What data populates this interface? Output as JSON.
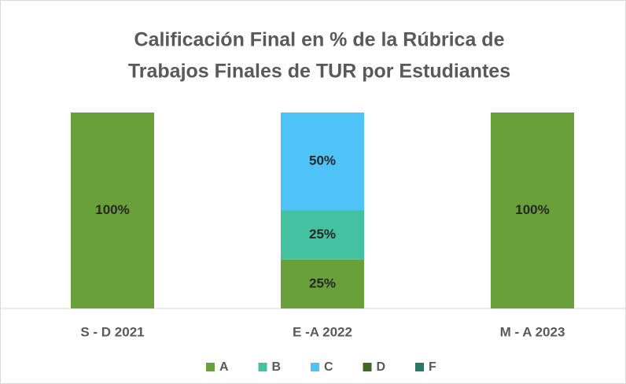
{
  "chart_data": {
    "type": "stacked_bar",
    "title": [
      "Calificación Final en % de la Rúbrica de",
      "Trabajos Finales de TUR por Estudiantes"
    ],
    "categories": [
      "S - D 2021",
      "E -A 2022",
      "M -  A 2023"
    ],
    "series": [
      {
        "name": "A",
        "color": "#6aa03a",
        "values": [
          100,
          25,
          100
        ],
        "value_labels": [
          "100%",
          "25%",
          "100%"
        ]
      },
      {
        "name": "B",
        "color": "#43c1a0",
        "values": [
          0,
          25,
          0
        ],
        "value_labels": [
          null,
          "25%",
          null
        ]
      },
      {
        "name": "C",
        "color": "#4fc3f7",
        "values": [
          0,
          50,
          0
        ],
        "value_labels": [
          null,
          "50%",
          null
        ]
      },
      {
        "name": "D",
        "color": "#3d6b22",
        "values": [
          0,
          0,
          0
        ],
        "value_labels": [
          null,
          null,
          null
        ]
      },
      {
        "name": "F",
        "color": "#2a7668",
        "values": [
          0,
          0,
          0
        ],
        "value_labels": [
          null,
          null,
          null
        ]
      }
    ],
    "legend": "bottom"
  }
}
